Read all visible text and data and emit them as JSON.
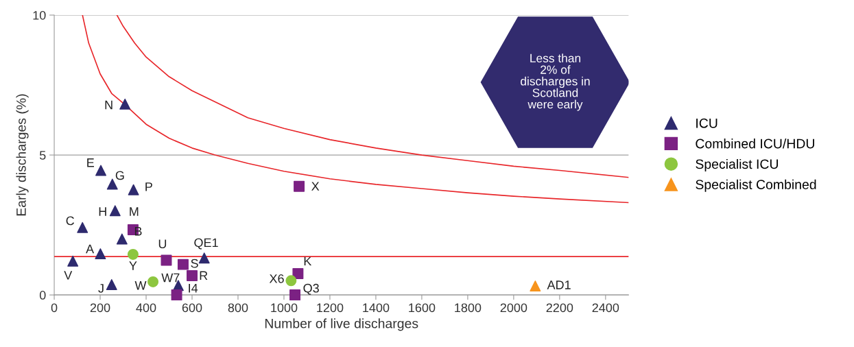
{
  "chart_data": {
    "type": "scatter",
    "xlabel": "Number of live discharges",
    "ylabel": "Early discharges (%)",
    "xlim": [
      0,
      2500
    ],
    "xticks": [
      0,
      200,
      400,
      600,
      800,
      1000,
      1200,
      1400,
      1600,
      1800,
      2000,
      2200,
      2400
    ],
    "ylim": [
      0,
      10
    ],
    "yticks": [
      0,
      5,
      10
    ],
    "grid": "y",
    "legend": "right",
    "series": [
      {
        "name": "ICU",
        "color": "#2e2a6e",
        "marker": "triangle",
        "x": [
          308,
          203,
          253,
          345,
          265,
          295,
          123,
          201,
          81,
          250,
          540,
          653
        ],
        "values": [
          6.82,
          4.45,
          3.96,
          3.76,
          3.01,
          2.0,
          2.41,
          1.47,
          1.21,
          0.37,
          0.34,
          1.32
        ]
      },
      {
        "name": "Combined ICU/HDU",
        "color": "#7b2183",
        "marker": "square",
        "x": [
          343,
          488,
          561,
          600,
          533,
          1066,
          1061,
          1048
        ],
        "values": [
          2.33,
          1.24,
          1.09,
          0.69,
          0,
          3.88,
          0.76,
          0
        ]
      },
      {
        "name": "Specialist ICU",
        "color": "#8dc63f",
        "marker": "circle",
        "x": [
          343,
          430,
          1031
        ],
        "values": [
          1.45,
          0.47,
          0.51
        ]
      },
      {
        "name": "Specialist Combined",
        "color": "#f7941d",
        "marker": "triangle",
        "x": [
          2094
        ],
        "values": [
          0.32
        ]
      },
      {
        "type": "line",
        "color": "#e8262a",
        "x": [
          123,
          150,
          200,
          250,
          308,
          400,
          500,
          600,
          700,
          843,
          1000,
          1200,
          1400,
          1600,
          1800,
          2000,
          2200,
          2500
        ],
        "values": [
          10,
          9.0,
          7.9,
          7.2,
          6.8,
          6.1,
          5.6,
          5.25,
          5.0,
          4.7,
          4.42,
          4.15,
          3.95,
          3.8,
          3.65,
          3.53,
          3.43,
          3.3
        ]
      },
      {
        "type": "line",
        "color": "#e8262a",
        "x": [
          273,
          300,
          350,
          400,
          500,
          600,
          700,
          843,
          1000,
          1200,
          1400,
          1600,
          1800,
          2000,
          2200,
          2500
        ],
        "values": [
          10,
          9.6,
          9.0,
          8.5,
          7.8,
          7.3,
          6.9,
          6.33,
          5.95,
          5.55,
          5.25,
          5.0,
          4.8,
          4.6,
          4.45,
          4.2
        ]
      }
    ],
    "ref_lines": [
      {
        "axis": "y",
        "value": 1.37,
        "color": "#e8262a"
      }
    ],
    "annotations": [
      {
        "text": "N",
        "x": 308,
        "y": 6.82
      },
      {
        "text": "E",
        "x": 203,
        "y": 4.45
      },
      {
        "text": "G",
        "x": 253,
        "y": 3.96
      },
      {
        "text": "P",
        "x": 345,
        "y": 3.76
      },
      {
        "text": "H",
        "x": 265,
        "y": 3.01
      },
      {
        "text": "M",
        "x": 343,
        "y": 2.33
      },
      {
        "text": "B",
        "x": 295,
        "y": 2.0
      },
      {
        "text": "C",
        "x": 123,
        "y": 2.41
      },
      {
        "text": "A",
        "x": 201,
        "y": 1.47
      },
      {
        "text": "V",
        "x": 81,
        "y": 1.21
      },
      {
        "text": "Y",
        "x": 343,
        "y": 1.45
      },
      {
        "text": "J",
        "x": 250,
        "y": 0.37
      },
      {
        "text": "W",
        "x": 430,
        "y": 0.47
      },
      {
        "text": "U",
        "x": 488,
        "y": 1.24
      },
      {
        "text": "S",
        "x": 561,
        "y": 1.09
      },
      {
        "text": "R",
        "x": 600,
        "y": 0.69
      },
      {
        "text": "W7",
        "x": 540,
        "y": 0.34
      },
      {
        "text": "I4",
        "x": 533,
        "y": 0
      },
      {
        "text": "QE1",
        "x": 653,
        "y": 1.32
      },
      {
        "text": "X",
        "x": 1066,
        "y": 3.88
      },
      {
        "text": "K",
        "x": 1061,
        "y": 0.76
      },
      {
        "text": "X6",
        "x": 1031,
        "y": 0.51
      },
      {
        "text": "Q3",
        "x": 1048,
        "y": 0
      },
      {
        "text": "AD1",
        "x": 2094,
        "y": 0.32
      },
      "Less than\n2% of\ndischarges in\nScotland\nwere early"
    ]
  }
}
